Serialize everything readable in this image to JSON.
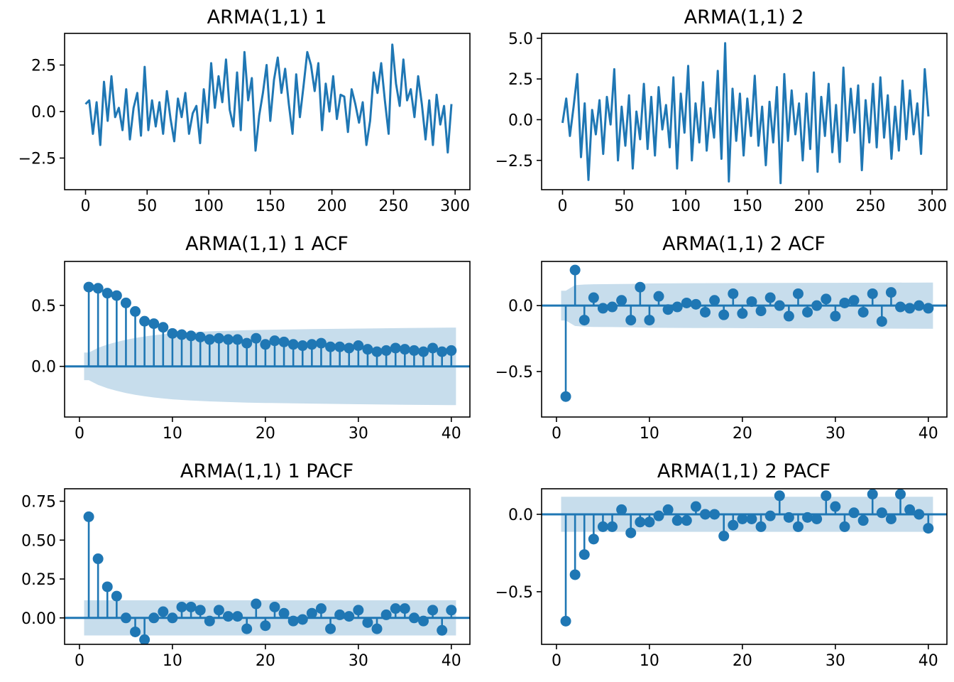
{
  "colors": {
    "line": "#1f77b4",
    "band": "#1f77b4"
  },
  "chart_data": [
    {
      "id": "ts1",
      "type": "line",
      "title": "ARMA(1,1) 1",
      "xlim": [
        -17,
        312
      ],
      "ylim": [
        -4.2,
        4.2
      ],
      "xticks": [
        0,
        50,
        100,
        150,
        200,
        250,
        300
      ],
      "yticks": [
        -2.5,
        0.0,
        2.5
      ],
      "ytick_labels": [
        "−2.5",
        "0.0",
        "2.5"
      ],
      "series": [
        {
          "x": [
            0,
            3,
            6,
            9,
            12,
            15,
            18,
            21,
            24,
            27,
            30,
            33,
            36,
            39,
            42,
            45,
            48,
            51,
            54,
            57,
            60,
            63,
            66,
            69,
            72,
            75,
            78,
            81,
            84,
            87,
            90,
            93,
            96,
            99,
            102,
            105,
            108,
            111,
            114,
            117,
            120,
            123,
            126,
            129,
            132,
            135,
            138,
            141,
            144,
            147,
            150,
            153,
            156,
            159,
            162,
            165,
            168,
            171,
            174,
            177,
            180,
            183,
            186,
            189,
            192,
            195,
            198,
            201,
            204,
            207,
            210,
            213,
            216,
            219,
            222,
            225,
            228,
            231,
            234,
            237,
            240,
            243,
            246,
            249,
            252,
            255,
            258,
            261,
            264,
            267,
            270,
            273,
            276,
            279,
            282,
            285,
            288,
            291,
            294,
            297
          ],
          "y": [
            0.4,
            0.6,
            -1.2,
            0.5,
            -1.8,
            1.6,
            -0.5,
            1.9,
            -0.3,
            0.2,
            -1.0,
            1.2,
            -1.5,
            0.2,
            1.0,
            -1.3,
            2.4,
            -1.0,
            0.6,
            -0.8,
            0.5,
            -1.2,
            1.1,
            -0.4,
            -1.6,
            0.7,
            -0.3,
            1.0,
            -1.2,
            -0.1,
            0.3,
            -1.7,
            1.2,
            -0.6,
            2.6,
            0.2,
            1.9,
            0.5,
            2.8,
            0.1,
            -0.8,
            2.1,
            -1.0,
            3.2,
            0.6,
            1.8,
            -2.1,
            -0.2,
            1.0,
            2.5,
            -0.5,
            1.7,
            2.9,
            1.0,
            2.3,
            0.4,
            -1.2,
            2.0,
            -0.3,
            1.4,
            3.2,
            2.5,
            1.1,
            2.6,
            -1.0,
            1.5,
            0.0,
            1.9,
            -0.4,
            0.9,
            0.8,
            -1.1,
            1.2,
            0.4,
            -0.6,
            0.5,
            -1.8,
            -0.5,
            2.1,
            1.0,
            2.6,
            0.6,
            -1.2,
            3.6,
            1.5,
            0.3,
            2.8,
            0.6,
            1.2,
            -0.3,
            1.9,
            0.4,
            -1.5,
            0.6,
            -1.8,
            0.9,
            -0.7,
            0.3,
            -2.2,
            0.4
          ]
        }
      ]
    },
    {
      "id": "ts2",
      "type": "line",
      "title": "ARMA(1,1) 2",
      "xlim": [
        -17,
        312
      ],
      "ylim": [
        -4.3,
        5.3
      ],
      "xticks": [
        0,
        50,
        100,
        150,
        200,
        250,
        300
      ],
      "yticks": [
        -2.5,
        0.0,
        2.5,
        5.0
      ],
      "ytick_labels": [
        "−2.5",
        "0.0",
        "2.5",
        "5.0"
      ],
      "series": [
        {
          "x": [
            0,
            3,
            6,
            9,
            12,
            15,
            18,
            21,
            24,
            27,
            30,
            33,
            36,
            39,
            42,
            45,
            48,
            51,
            54,
            57,
            60,
            63,
            66,
            69,
            72,
            75,
            78,
            81,
            84,
            87,
            90,
            93,
            96,
            99,
            102,
            105,
            108,
            111,
            114,
            117,
            120,
            123,
            126,
            129,
            132,
            135,
            138,
            141,
            144,
            147,
            150,
            153,
            156,
            159,
            162,
            165,
            168,
            171,
            174,
            177,
            180,
            183,
            186,
            189,
            192,
            195,
            198,
            201,
            204,
            207,
            210,
            213,
            216,
            219,
            222,
            225,
            228,
            231,
            234,
            237,
            240,
            243,
            246,
            249,
            252,
            255,
            258,
            261,
            264,
            267,
            270,
            273,
            276,
            279,
            282,
            285,
            288,
            291,
            294,
            297
          ],
          "y": [
            -0.2,
            1.3,
            -1.0,
            0.8,
            2.8,
            -2.3,
            1.0,
            -3.7,
            0.6,
            -0.9,
            1.2,
            -2.1,
            1.4,
            -0.3,
            3.1,
            -2.5,
            0.8,
            -1.6,
            1.5,
            -3.0,
            0.5,
            -1.2,
            2.2,
            -1.8,
            1.4,
            -2.2,
            2.0,
            -0.6,
            0.9,
            -1.7,
            2.6,
            -3.0,
            1.6,
            -0.8,
            3.3,
            -2.5,
            1.0,
            -1.4,
            2.3,
            -1.9,
            0.7,
            -1.1,
            3.0,
            -2.4,
            4.7,
            -3.8,
            1.9,
            -1.3,
            1.6,
            -2.2,
            1.3,
            -1.0,
            2.7,
            -1.6,
            0.8,
            -2.8,
            1.1,
            -1.4,
            2.0,
            -3.9,
            2.8,
            -1.3,
            1.8,
            -0.9,
            1.0,
            -2.5,
            1.6,
            -1.8,
            2.9,
            -3.2,
            1.4,
            -1.0,
            2.2,
            -2.0,
            0.9,
            -2.6,
            3.2,
            -1.3,
            1.9,
            -0.8,
            2.1,
            -3.1,
            1.2,
            -1.4,
            2.2,
            -1.7,
            2.6,
            -1.1,
            1.5,
            -2.4,
            0.8,
            -1.9,
            2.4,
            -1.2,
            1.8,
            -0.9,
            1.0,
            -2.1,
            3.1,
            0.2
          ]
        }
      ]
    },
    {
      "id": "acf1",
      "type": "stem",
      "title": "ARMA(1,1) 1 ACF",
      "xlim": [
        -1.6,
        42
      ],
      "ylim": [
        -0.415,
        0.86
      ],
      "xticks": [
        0,
        10,
        20,
        30,
        40
      ],
      "yticks": [
        0.0,
        0.5
      ],
      "ytick_labels": [
        "0.0",
        "0.5"
      ],
      "lags": [
        1,
        2,
        3,
        4,
        5,
        6,
        7,
        8,
        9,
        10,
        11,
        12,
        13,
        14,
        15,
        16,
        17,
        18,
        19,
        20,
        21,
        22,
        23,
        24,
        25,
        26,
        27,
        28,
        29,
        30,
        31,
        32,
        33,
        34,
        35,
        36,
        37,
        38,
        39,
        40
      ],
      "values": [
        0.65,
        0.64,
        0.6,
        0.58,
        0.52,
        0.45,
        0.37,
        0.35,
        0.32,
        0.27,
        0.26,
        0.25,
        0.24,
        0.22,
        0.23,
        0.22,
        0.22,
        0.19,
        0.23,
        0.18,
        0.21,
        0.2,
        0.18,
        0.17,
        0.18,
        0.19,
        0.16,
        0.16,
        0.15,
        0.17,
        0.14,
        0.12,
        0.13,
        0.15,
        0.14,
        0.13,
        0.12,
        0.15,
        0.12,
        0.13
      ],
      "conf_int_x": [
        0.5,
        1,
        2,
        3,
        4,
        5,
        6,
        7,
        8,
        9,
        10,
        12,
        14,
        16,
        18,
        20,
        25,
        30,
        35,
        40,
        40.5
      ],
      "conf_int": [
        0.113,
        0.113,
        0.152,
        0.179,
        0.2,
        0.218,
        0.233,
        0.245,
        0.255,
        0.263,
        0.27,
        0.28,
        0.287,
        0.292,
        0.297,
        0.3,
        0.305,
        0.31,
        0.314,
        0.318,
        0.318
      ]
    },
    {
      "id": "acf2",
      "type": "stem",
      "title": "ARMA(1,1) 2 ACF",
      "xlim": [
        -1.6,
        42
      ],
      "ylim": [
        -0.845,
        0.335
      ],
      "xticks": [
        0,
        10,
        20,
        30,
        40
      ],
      "yticks": [
        -0.5,
        0.0
      ],
      "ytick_labels": [
        "−0.5",
        "0.0"
      ],
      "lags": [
        1,
        2,
        3,
        4,
        5,
        6,
        7,
        8,
        9,
        10,
        11,
        12,
        13,
        14,
        15,
        16,
        17,
        18,
        19,
        20,
        21,
        22,
        23,
        24,
        25,
        26,
        27,
        28,
        29,
        30,
        31,
        32,
        33,
        34,
        35,
        36,
        37,
        38,
        39,
        40
      ],
      "values": [
        -0.69,
        0.27,
        -0.11,
        0.06,
        -0.02,
        -0.01,
        0.04,
        -0.11,
        0.14,
        -0.11,
        0.07,
        -0.03,
        -0.01,
        0.02,
        0.01,
        -0.05,
        0.04,
        -0.07,
        0.09,
        -0.06,
        0.03,
        -0.04,
        0.06,
        0.0,
        -0.08,
        0.09,
        -0.05,
        0.0,
        0.05,
        -0.08,
        0.02,
        0.04,
        -0.05,
        0.09,
        -0.12,
        0.1,
        -0.01,
        -0.02,
        0.0,
        -0.02
      ],
      "conf_int_x": [
        0.5,
        1,
        2,
        3,
        4,
        6,
        8,
        10,
        15,
        20,
        30,
        40,
        40.5
      ],
      "conf_int": [
        0.113,
        0.113,
        0.155,
        0.16,
        0.162,
        0.163,
        0.165,
        0.168,
        0.17,
        0.171,
        0.173,
        0.175,
        0.175
      ]
    },
    {
      "id": "pacf1",
      "type": "stem",
      "title": "ARMA(1,1) 1 PACF",
      "xlim": [
        -1.6,
        42
      ],
      "ylim": [
        -0.17,
        0.83
      ],
      "xticks": [
        0,
        10,
        20,
        30,
        40
      ],
      "yticks": [
        0.0,
        0.25,
        0.5,
        0.75
      ],
      "ytick_labels": [
        "0.00",
        "0.25",
        "0.50",
        "0.75"
      ],
      "lags": [
        1,
        2,
        3,
        4,
        5,
        6,
        7,
        8,
        9,
        10,
        11,
        12,
        13,
        14,
        15,
        16,
        17,
        18,
        19,
        20,
        21,
        22,
        23,
        24,
        25,
        26,
        27,
        28,
        29,
        30,
        31,
        32,
        33,
        34,
        35,
        36,
        37,
        38,
        39,
        40
      ],
      "values": [
        0.65,
        0.38,
        0.2,
        0.14,
        0.0,
        -0.09,
        -0.14,
        0.0,
        0.04,
        0.0,
        0.07,
        0.07,
        0.05,
        -0.02,
        0.05,
        0.01,
        0.01,
        -0.07,
        0.09,
        -0.05,
        0.07,
        0.03,
        -0.02,
        -0.01,
        0.03,
        0.06,
        -0.07,
        0.02,
        0.01,
        0.05,
        -0.03,
        -0.07,
        0.02,
        0.06,
        0.06,
        0.0,
        -0.02,
        0.05,
        -0.08,
        0.05
      ],
      "conf_int_x": [
        0.5,
        40.5
      ],
      "conf_int": [
        0.113,
        0.113
      ]
    },
    {
      "id": "pacf2",
      "type": "stem",
      "title": "ARMA(1,1) 2 PACF",
      "xlim": [
        -1.6,
        42
      ],
      "ylim": [
        -0.84,
        0.165
      ],
      "xticks": [
        0,
        10,
        20,
        30,
        40
      ],
      "yticks": [
        -0.5,
        0.0
      ],
      "ytick_labels": [
        "−0.5",
        "0.0"
      ],
      "lags": [
        1,
        2,
        3,
        4,
        5,
        6,
        7,
        8,
        9,
        10,
        11,
        12,
        13,
        14,
        15,
        16,
        17,
        18,
        19,
        20,
        21,
        22,
        23,
        24,
        25,
        26,
        27,
        28,
        29,
        30,
        31,
        32,
        33,
        34,
        35,
        36,
        37,
        38,
        39,
        40
      ],
      "values": [
        -0.69,
        -0.39,
        -0.26,
        -0.16,
        -0.08,
        -0.08,
        0.03,
        -0.12,
        -0.05,
        -0.05,
        -0.01,
        0.03,
        -0.04,
        -0.04,
        0.05,
        0.0,
        0.0,
        -0.14,
        -0.07,
        -0.03,
        -0.03,
        -0.08,
        -0.01,
        0.12,
        -0.02,
        -0.08,
        -0.02,
        -0.03,
        0.12,
        0.05,
        -0.08,
        0.01,
        -0.04,
        0.13,
        0.01,
        -0.03,
        0.13,
        0.03,
        0.0,
        -0.09
      ],
      "conf_int_x": [
        0.5,
        40.5
      ],
      "conf_int": [
        0.113,
        0.113
      ]
    }
  ]
}
